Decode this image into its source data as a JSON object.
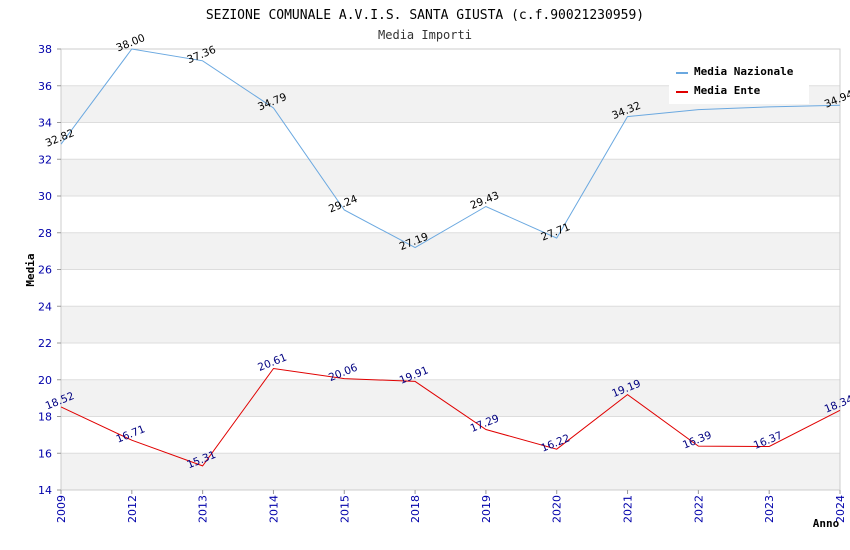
{
  "chart_data": {
    "type": "line",
    "title": "SEZIONE COMUNALE A.V.I.S. SANTA GIUSTA (c.f.90021230959)",
    "subtitle": "Media Importi",
    "xlabel": "Anno",
    "ylabel": "Media",
    "categories": [
      "2009",
      "2012",
      "2013",
      "2014",
      "2015",
      "2018",
      "2019",
      "2020",
      "2021",
      "2022",
      "2023",
      "2024"
    ],
    "ylim": [
      14,
      38
    ],
    "yticks": [
      "14",
      "16",
      "18",
      "20",
      "22",
      "24",
      "26",
      "28",
      "30",
      "32",
      "34",
      "36",
      "38"
    ],
    "grid": true,
    "legend_position": "top-right",
    "series": [
      {
        "name": "Media Nazionale",
        "color": "#6aa8e0",
        "label_color": "#000000",
        "values": [
          32.82,
          38.0,
          37.36,
          34.79,
          29.24,
          27.19,
          29.43,
          27.71,
          34.32,
          34.7,
          34.85,
          34.94
        ],
        "labels": [
          "32.82",
          "38.00",
          "37.36",
          "34.79",
          "29.24",
          "27.19",
          "29.43",
          "27.71",
          "34.32",
          "",
          "",
          "34.94"
        ]
      },
      {
        "name": "Media Ente",
        "color": "#e00000",
        "label_color": "#000080",
        "values": [
          18.52,
          16.71,
          15.31,
          20.61,
          20.06,
          19.91,
          17.29,
          16.22,
          19.19,
          16.39,
          16.37,
          18.34
        ],
        "labels": [
          "18.52",
          "16.71",
          "15.31",
          "20.61",
          "20.06",
          "19.91",
          "17.29",
          "16.22",
          "19.19",
          "16.39",
          "16.37",
          "18.34"
        ]
      }
    ]
  }
}
